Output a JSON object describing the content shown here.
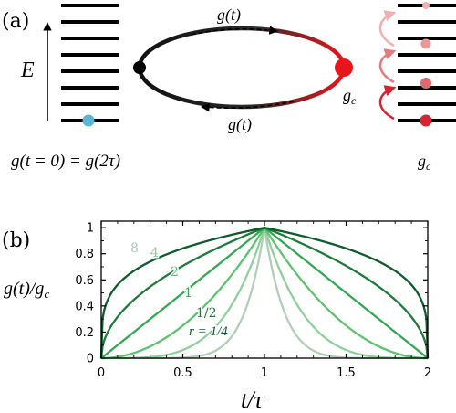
{
  "panel_a": {
    "label": "(a)",
    "energy_axis_label": "E",
    "loop_top_label": "g(t)",
    "loop_bottom_label": "g(t)",
    "gc_label_loop": "g",
    "gc_subscript": "c",
    "initial_condition_label": "g(t = 0) = g(2τ)",
    "gc_label_right": "g",
    "colors": {
      "ground_state_dot": "#58b7d6",
      "loop_start_dot": "#000000",
      "loop_end_dot": "#e8161c",
      "excitation_dark": "#d9232e",
      "excitation_mid": "#e77a7d",
      "excitation_light": "#f2aeb0"
    }
  },
  "panel_b": {
    "label": "(b)",
    "y_axis_label": "g(t)/g",
    "y_axis_subscript": "c",
    "x_axis_label": "t/τ",
    "curve_labels": {
      "r8": "8",
      "r4": "4",
      "r2": "2",
      "r1": "1",
      "r12": "1/2",
      "r14": "r = 1/4"
    }
  },
  "chart_data": {
    "type": "line",
    "title": "",
    "xlabel": "t/τ",
    "ylabel": "g(t)/g_c",
    "xlim": [
      0,
      2
    ],
    "ylim": [
      0,
      1.05
    ],
    "xticks": [
      "0",
      "0.5",
      "1",
      "1.5",
      "2"
    ],
    "yticks": [
      "0",
      "0.2",
      "0.4",
      "0.6",
      "0.8",
      "1"
    ],
    "grid": false,
    "formula": "g/g_c = (t/τ)^r for t ≤ τ; ((2τ − t)/τ)^r for t > τ",
    "series": [
      {
        "name": "r = 1/4",
        "r": 0.25,
        "color": "#0e5b2c"
      },
      {
        "name": "1/2",
        "r": 0.5,
        "color": "#1f7a3b"
      },
      {
        "name": "1",
        "r": 1,
        "color": "#34a853"
      },
      {
        "name": "2",
        "r": 2,
        "color": "#5ec271"
      },
      {
        "name": "4",
        "r": 4,
        "color": "#8fd19b"
      },
      {
        "name": "8",
        "r": 8,
        "color": "#b3cdb7"
      }
    ]
  }
}
